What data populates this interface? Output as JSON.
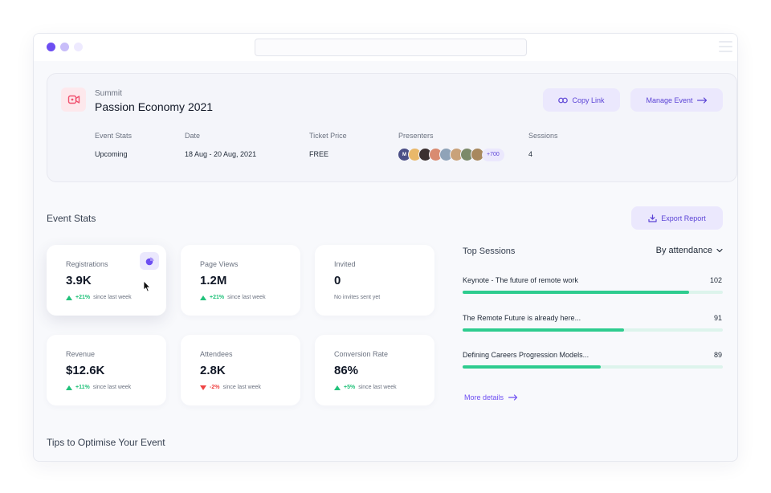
{
  "event": {
    "type": "Summit",
    "title": "Passion Economy 2021",
    "copy_link_label": "Copy Link",
    "manage_event_label": "Manage Event",
    "meta": [
      {
        "label": "Event Stats",
        "value": "Upcoming"
      },
      {
        "label": "Date",
        "value": "18 Aug - 20 Aug, 2021"
      },
      {
        "label": "Ticket Price",
        "value": "FREE"
      },
      {
        "label": "Presenters",
        "value": ""
      },
      {
        "label": "Sessions",
        "value": "4"
      }
    ],
    "presenters": {
      "first_initial": "M",
      "avatar_colors": [
        "#4b4f86",
        "#e9b86a",
        "#3b3030",
        "#d98b71",
        "#8fa3b8",
        "#c9a27a",
        "#7c8a6a",
        "#a8885e"
      ],
      "more_label": "+700"
    }
  },
  "stats_section": {
    "title": "Event Stats",
    "export_label": "Export Report",
    "cards": [
      {
        "label": "Registrations",
        "value": "3.9K",
        "delta": "+21%",
        "direction": "up",
        "note": "since last week"
      },
      {
        "label": "Page Views",
        "value": "1.2M",
        "delta": "+21%",
        "direction": "up",
        "note": "since last week"
      },
      {
        "label": "Invited",
        "value": "0",
        "note": "No invites sent yet"
      },
      {
        "label": "Revenue",
        "value": "$12.6K",
        "delta": "+11%",
        "direction": "up",
        "note": "since last week"
      },
      {
        "label": "Attendees",
        "value": "2.8K",
        "delta": "-2%",
        "direction": "down",
        "note": "since last week"
      },
      {
        "label": "Conversion Rate",
        "value": "86%",
        "delta": "+5%",
        "direction": "up",
        "note": "since last week"
      }
    ]
  },
  "top_sessions": {
    "title": "Top Sessions",
    "sort_label": "By attendance",
    "items": [
      {
        "name": "Keynote - The future of remote work",
        "count": "102",
        "fill_fraction": 0.87
      },
      {
        "name": "The Remote Future is already here...",
        "count": "91",
        "fill_fraction": 0.62
      },
      {
        "name": "Defining Careers Progression Models...",
        "count": "89",
        "fill_fraction": 0.53
      }
    ],
    "more_label": "More details"
  },
  "tips": {
    "title": "Tips to Optimise Your Event"
  },
  "colors": {
    "accent": "#6d4ef2",
    "accent_soft": "#ebe8fd",
    "positive": "#22c27b",
    "negative": "#ef4444",
    "bar_fill": "#2ecc8f",
    "bar_track": "#ddf4ec",
    "event_icon_bg": "#fde8ec",
    "event_icon": "#f0506e"
  },
  "icons": {
    "event": "video-camera-icon",
    "copy": "link-icon",
    "manage": "arrow-right-icon",
    "export": "download-icon",
    "chart": "pie-chart-icon",
    "sort": "chevron-down-icon"
  }
}
